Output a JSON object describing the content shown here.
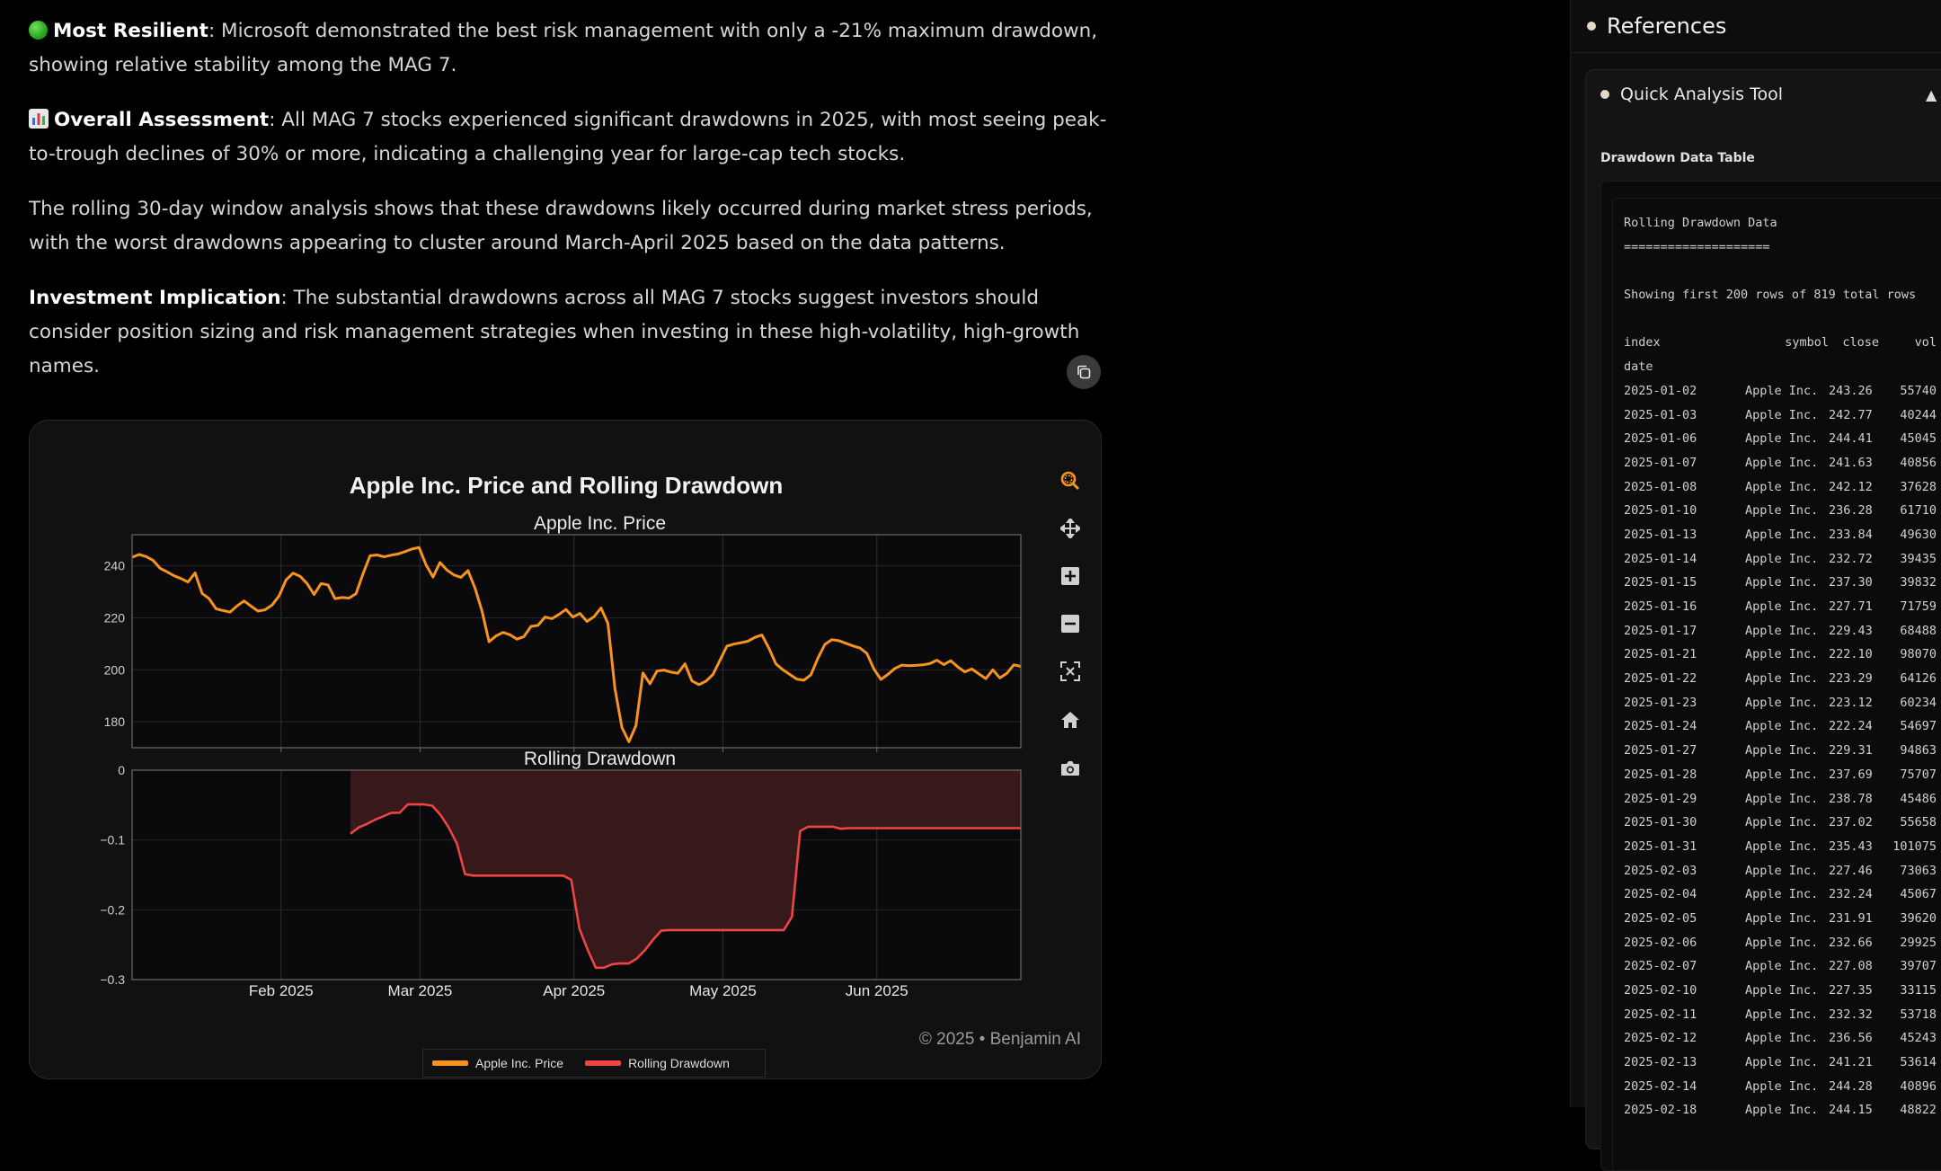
{
  "main": {
    "paragraphs": [
      {
        "bold": "Most Resilient",
        "text": ": Microsoft demonstrated the best risk management with only a -21% maximum drawdown, showing relative stability among the MAG 7."
      },
      {
        "bold": "Overall Assessment",
        "text": ": All MAG 7 stocks experienced significant drawdowns in 2025, with most seeing peak-to-trough declines of 30% or more, indicating a challenging year for large-cap tech stocks."
      },
      {
        "bold": "",
        "text": "The rolling 30-day window analysis shows that these drawdowns likely occurred during market stress periods, with the worst drawdowns appearing to cluster around March-April 2025 based on the data patterns."
      },
      {
        "bold": "Investment Implication",
        "text": ": The substantial drawdowns across all MAG 7 stocks suggest investors should consider position sizing and risk management strategies when investing in these high-volatility, high-growth names."
      }
    ],
    "footer": "© 2025 • Benjamin AI",
    "modebar": [
      "zoom-icon",
      "pan-icon",
      "zoom-in-icon",
      "zoom-out-icon",
      "autoscale-icon",
      "home-icon",
      "camera-icon"
    ]
  },
  "chart_data": {
    "type": "line",
    "title": "Apple Inc. Price and Rolling Drawdown",
    "colors": {
      "price": "#f7931e",
      "drawdown": "#ef4444",
      "drawdown_fill": "#3a1a1c"
    },
    "x_ticks": [
      "Feb 2025",
      "Mar 2025",
      "Apr 2025",
      "May 2025",
      "Jun 2025"
    ],
    "legend": [
      "Apple Inc. Price",
      "Rolling Drawdown"
    ],
    "panels": [
      {
        "subtitle": "Apple Inc. Price",
        "ylim": [
          170,
          252
        ],
        "y_ticks": [
          240,
          220,
          200,
          180
        ],
        "series": [
          {
            "name": "Apple Inc. Price",
            "x_start": "2025-01-02",
            "x_end": "2025-06-30",
            "values": [
              243.3,
              244.4,
              243.6,
              242.1,
              239.1,
              237.7,
              236.2,
              235.1,
              233.8,
              237.3,
              229.4,
              227.4,
              223.5,
              222.8,
              222.2,
              224.6,
              226.5,
              224.5,
              222.6,
              223.1,
              224.9,
              228.4,
              234.6,
              237.2,
              236.0,
              233.2,
              229.0,
              233.2,
              232.7,
              227.4,
              227.8,
              227.6,
              229.3,
              237.0,
              243.9,
              244.2,
              243.5,
              244.1,
              244.6,
              245.5,
              246.5,
              247.1,
              240.4,
              235.7,
              241.3,
              238.4,
              236.5,
              235.6,
              238.2,
              231.5,
              222.6,
              210.8,
              213.0,
              214.4,
              213.5,
              211.8,
              212.8,
              216.7,
              217.1,
              220.3,
              219.7,
              221.3,
              223.2,
              220.3,
              221.7,
              218.6,
              220.4,
              223.8,
              217.9,
              192.8,
              177.8,
              172.3,
              178.5,
              198.8,
              194.6,
              199.5,
              199.9,
              199.1,
              198.7,
              202.3,
              195.7,
              194.3,
              195.6,
              198.2,
              203.6,
              209.1,
              209.9,
              210.4,
              211.0,
              212.5,
              213.4,
              208.3,
              202.3,
              200.0,
              198.2,
              196.4,
              196.0,
              198.1,
              204.5,
              209.8,
              211.6,
              211.2,
              210.2,
              209.2,
              208.4,
              206.3,
              200.3,
              196.3,
              198.2,
              200.5,
              201.8,
              201.6,
              201.7,
              201.9,
              202.4,
              203.7,
              202.0,
              203.5,
              201.1,
              199.2,
              200.3,
              198.4,
              196.6,
              200.0,
              196.9,
              198.6,
              201.9,
              201.3
            ]
          }
        ]
      },
      {
        "subtitle": "Rolling Drawdown",
        "ylim": [
          -0.3,
          0
        ],
        "y_ticks": [
          0,
          -0.1,
          -0.2,
          -0.3
        ],
        "y_tick_labels": [
          "0",
          "−0.1",
          "−0.2",
          "−0.3"
        ],
        "series": [
          {
            "name": "Rolling Drawdown",
            "x_start": "2025-02-15",
            "x_end": "2025-06-30",
            "values": [
              -0.091,
              -0.082,
              -0.077,
              -0.071,
              -0.066,
              -0.061,
              -0.061,
              -0.049,
              -0.049,
              -0.049,
              -0.051,
              -0.064,
              -0.082,
              -0.105,
              -0.149,
              -0.151,
              -0.151,
              -0.151,
              -0.151,
              -0.151,
              -0.151,
              -0.151,
              -0.151,
              -0.151,
              -0.151,
              -0.151,
              -0.151,
              -0.157,
              -0.227,
              -0.257,
              -0.283,
              -0.283,
              -0.278,
              -0.277,
              -0.277,
              -0.27,
              -0.258,
              -0.243,
              -0.23,
              -0.229,
              -0.229,
              -0.229,
              -0.229,
              -0.229,
              -0.229,
              -0.229,
              -0.229,
              -0.229,
              -0.229,
              -0.229,
              -0.229,
              -0.229,
              -0.229,
              -0.229,
              -0.21,
              -0.087,
              -0.081,
              -0.081,
              -0.081,
              -0.081,
              -0.084,
              -0.083,
              -0.083,
              -0.083,
              -0.083,
              -0.083,
              -0.083,
              -0.083,
              -0.083,
              -0.083,
              -0.083,
              -0.083,
              -0.083,
              -0.083,
              -0.083,
              -0.083,
              -0.083,
              -0.083,
              -0.083,
              -0.083,
              -0.083,
              -0.083,
              -0.083
            ]
          }
        ]
      }
    ]
  },
  "refs": {
    "title": "References",
    "tool_title": "Quick Analysis Tool",
    "table_label": "Drawdown Data Table",
    "header_lines": [
      "Rolling Drawdown Data",
      "====================",
      "",
      "Showing first 200 rows of 819 total rows",
      ""
    ],
    "columns": [
      "index",
      "symbol",
      "close",
      "vol"
    ],
    "index_label": "date",
    "rows": [
      [
        "2025-01-02",
        "Apple Inc.",
        "243.26",
        "55740"
      ],
      [
        "2025-01-03",
        "Apple Inc.",
        "242.77",
        "40244"
      ],
      [
        "2025-01-06",
        "Apple Inc.",
        "244.41",
        "45045"
      ],
      [
        "2025-01-07",
        "Apple Inc.",
        "241.63",
        "40856"
      ],
      [
        "2025-01-08",
        "Apple Inc.",
        "242.12",
        "37628"
      ],
      [
        "2025-01-10",
        "Apple Inc.",
        "236.28",
        "61710"
      ],
      [
        "2025-01-13",
        "Apple Inc.",
        "233.84",
        "49630"
      ],
      [
        "2025-01-14",
        "Apple Inc.",
        "232.72",
        "39435"
      ],
      [
        "2025-01-15",
        "Apple Inc.",
        "237.30",
        "39832"
      ],
      [
        "2025-01-16",
        "Apple Inc.",
        "227.71",
        "71759"
      ],
      [
        "2025-01-17",
        "Apple Inc.",
        "229.43",
        "68488"
      ],
      [
        "2025-01-21",
        "Apple Inc.",
        "222.10",
        "98070"
      ],
      [
        "2025-01-22",
        "Apple Inc.",
        "223.29",
        "64126"
      ],
      [
        "2025-01-23",
        "Apple Inc.",
        "223.12",
        "60234"
      ],
      [
        "2025-01-24",
        "Apple Inc.",
        "222.24",
        "54697"
      ],
      [
        "2025-01-27",
        "Apple Inc.",
        "229.31",
        "94863"
      ],
      [
        "2025-01-28",
        "Apple Inc.",
        "237.69",
        "75707"
      ],
      [
        "2025-01-29",
        "Apple Inc.",
        "238.78",
        "45486"
      ],
      [
        "2025-01-30",
        "Apple Inc.",
        "237.02",
        "55658"
      ],
      [
        "2025-01-31",
        "Apple Inc.",
        "235.43",
        "101075"
      ],
      [
        "2025-02-03",
        "Apple Inc.",
        "227.46",
        "73063"
      ],
      [
        "2025-02-04",
        "Apple Inc.",
        "232.24",
        "45067"
      ],
      [
        "2025-02-05",
        "Apple Inc.",
        "231.91",
        "39620"
      ],
      [
        "2025-02-06",
        "Apple Inc.",
        "232.66",
        "29925"
      ],
      [
        "2025-02-07",
        "Apple Inc.",
        "227.08",
        "39707"
      ],
      [
        "2025-02-10",
        "Apple Inc.",
        "227.35",
        "33115"
      ],
      [
        "2025-02-11",
        "Apple Inc.",
        "232.32",
        "53718"
      ],
      [
        "2025-02-12",
        "Apple Inc.",
        "236.56",
        "45243"
      ],
      [
        "2025-02-13",
        "Apple Inc.",
        "241.21",
        "53614"
      ],
      [
        "2025-02-14",
        "Apple Inc.",
        "244.28",
        "40896"
      ],
      [
        "2025-02-18",
        "Apple Inc.",
        "244.15",
        "48822"
      ]
    ]
  }
}
